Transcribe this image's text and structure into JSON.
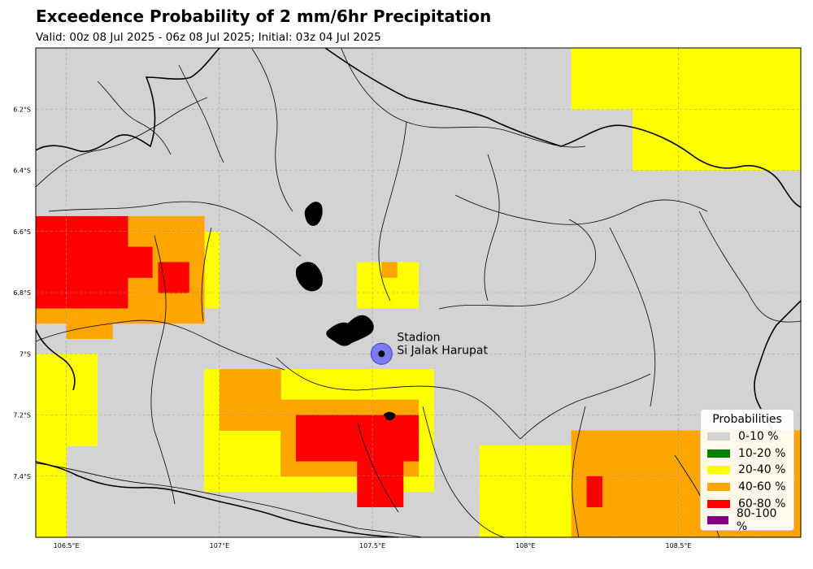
{
  "title": "Exceedence Probability of 2 mm/6hr Precipitation",
  "subtitle": "Valid: 00z 08 Jul 2025 - 06z 08 Jul 2025; Initial: 03z 04 Jul 2025",
  "map": {
    "lon_range": [
      106.4,
      108.9
    ],
    "lat_range": [
      -7.6,
      -6.0
    ],
    "lon_ticks": [
      {
        "value": 106.5,
        "label": "106.5°E"
      },
      {
        "value": 107.0,
        "label": "107°E"
      },
      {
        "value": 107.5,
        "label": "107.5°E"
      },
      {
        "value": 108.0,
        "label": "108°E"
      },
      {
        "value": 108.5,
        "label": "108.5°E"
      }
    ],
    "lat_ticks": [
      {
        "value": -6.2,
        "label": "6.2°S"
      },
      {
        "value": -6.4,
        "label": "6.4°S"
      },
      {
        "value": -6.6,
        "label": "6.6°S"
      },
      {
        "value": -6.8,
        "label": "6.8°S"
      },
      {
        "value": -7.0,
        "label": "7°S"
      },
      {
        "value": -7.2,
        "label": "7.2°S"
      },
      {
        "value": -7.4,
        "label": "7.4°S"
      }
    ],
    "gridlines": true,
    "background_color": "#d3d3d3"
  },
  "station": {
    "name_line1": "Stadion",
    "name_line2": "Si Jalak Harupat",
    "lon": 107.53,
    "lat": -7.0
  },
  "legend": {
    "title": "Probabilities",
    "position": "bottom-right",
    "items": [
      {
        "label": "0-10 %",
        "color": "#d3d3d3"
      },
      {
        "label": "10-20 %",
        "color": "#008000"
      },
      {
        "label": "20-40 %",
        "color": "#ffff00"
      },
      {
        "label": "40-60 %",
        "color": "#ffa500"
      },
      {
        "label": "60-80 %",
        "color": "#ff0000"
      },
      {
        "label": "80-100 %",
        "color": "#800080"
      }
    ]
  },
  "probability_grid": {
    "cell_deg": 0.05,
    "regions": [
      {
        "cls": 2,
        "lon": [
          108.15,
          108.9
        ],
        "lat": [
          -6.2,
          -6.0
        ]
      },
      {
        "cls": 2,
        "lon": [
          108.35,
          108.9
        ],
        "lat": [
          -6.4,
          -6.2
        ]
      },
      {
        "cls": 2,
        "lon": [
          106.4,
          106.6
        ],
        "lat": [
          -7.3,
          -7.0
        ]
      },
      {
        "cls": 2,
        "lon": [
          106.4,
          106.48
        ],
        "lat": [
          -7.6,
          -7.3
        ]
      },
      {
        "cls": 2,
        "lon": [
          106.6,
          107.0
        ],
        "lat": [
          -6.85,
          -6.6
        ]
      },
      {
        "cls": 3,
        "lon": [
          106.4,
          106.95
        ],
        "lat": [
          -6.9,
          -6.55
        ]
      },
      {
        "cls": 3,
        "lon": [
          106.5,
          106.65
        ],
        "lat": [
          -6.95,
          -6.9
        ]
      },
      {
        "cls": 4,
        "lon": [
          106.4,
          106.68
        ],
        "lat": [
          -6.85,
          -6.55
        ]
      },
      {
        "cls": 4,
        "lon": [
          106.68,
          106.78
        ],
        "lat": [
          -6.75,
          -6.65
        ]
      },
      {
        "cls": 4,
        "lon": [
          106.8,
          106.9
        ],
        "lat": [
          -6.8,
          -6.7
        ]
      },
      {
        "cls": 2,
        "lon": [
          107.45,
          107.63
        ],
        "lat": [
          -6.85,
          -6.7
        ]
      },
      {
        "cls": 3,
        "lon": [
          107.53,
          107.58
        ],
        "lat": [
          -6.75,
          -6.7
        ]
      },
      {
        "cls": 2,
        "lon": [
          106.95,
          107.7
        ],
        "lat": [
          -7.45,
          -7.05
        ]
      },
      {
        "cls": 3,
        "lon": [
          107.0,
          107.2
        ],
        "lat": [
          -7.25,
          -7.05
        ]
      },
      {
        "cls": 3,
        "lon": [
          107.2,
          107.65
        ],
        "lat": [
          -7.4,
          -7.15
        ]
      },
      {
        "cls": 4,
        "lon": [
          107.25,
          107.63
        ],
        "lat": [
          -7.35,
          -7.2
        ]
      },
      {
        "cls": 4,
        "lon": [
          107.45,
          107.6
        ],
        "lat": [
          -7.5,
          -7.3
        ]
      },
      {
        "cls": 2,
        "lon": [
          107.85,
          108.3
        ],
        "lat": [
          -7.6,
          -7.3
        ]
      },
      {
        "cls": 3,
        "lon": [
          108.15,
          108.9
        ],
        "lat": [
          -7.6,
          -7.25
        ]
      },
      {
        "cls": 4,
        "lon": [
          108.2,
          108.25
        ],
        "lat": [
          -7.5,
          -7.4
        ]
      }
    ]
  }
}
